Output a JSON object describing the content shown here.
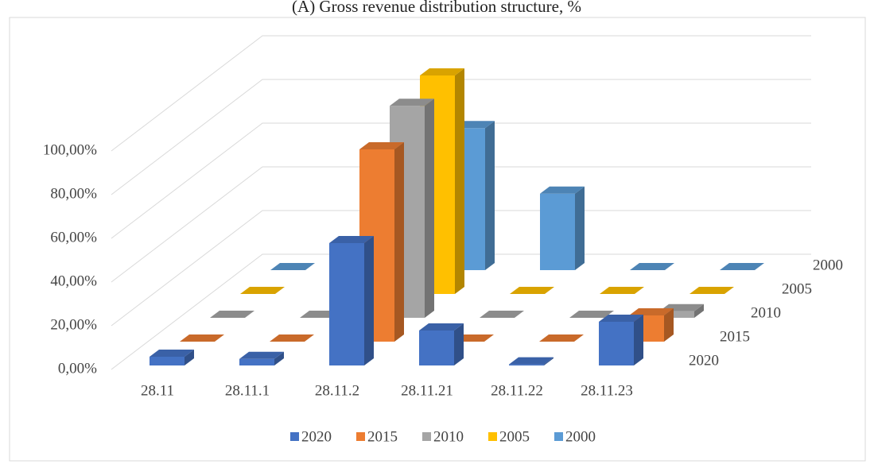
{
  "chart_data": {
    "type": "bar3d",
    "title": "(A) Gross revenue distribution structure, %",
    "categories": [
      "28.11",
      "28.11.1",
      "28.11.2",
      "28.11.21",
      "28.11.22",
      "28.11.23"
    ],
    "series": [
      {
        "name": "2020",
        "color": "#4472c4",
        "values": [
          4,
          3,
          56,
          16,
          0.5,
          20
        ]
      },
      {
        "name": "2015",
        "color": "#ed7d31",
        "values": [
          0,
          0,
          88,
          0,
          0,
          12
        ]
      },
      {
        "name": "2010",
        "color": "#a5a5a5",
        "values": [
          0,
          0,
          97,
          0,
          0,
          3
        ]
      },
      {
        "name": "2005",
        "color": "#ffc000",
        "values": [
          0,
          0,
          100,
          0,
          0,
          0
        ]
      },
      {
        "name": "2000",
        "color": "#5b9bd5",
        "values": [
          0,
          0,
          65,
          35,
          0,
          0
        ]
      }
    ],
    "ylim": [
      0,
      100
    ],
    "yticks": [
      {
        "value": 0,
        "label": "0,00%"
      },
      {
        "value": 20,
        "label": "20,00%"
      },
      {
        "value": 40,
        "label": "40,00%"
      },
      {
        "value": 60,
        "label": "60,00%"
      },
      {
        "value": 80,
        "label": "80,00%"
      },
      {
        "value": 100,
        "label": "100,00%"
      }
    ],
    "grid": true,
    "legend": "bottom"
  }
}
